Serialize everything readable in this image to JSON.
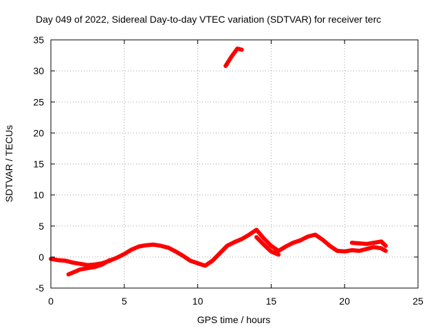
{
  "chart_data": {
    "type": "line",
    "title": "Day 049 of 2022, Sidereal Day-to-day VTEC variation (SDTVAR) for receiver terc",
    "xlabel": "GPS time / hours",
    "ylabel": "SDTVAR / TECUs",
    "xlim": [
      0,
      25
    ],
    "ylim": [
      -5,
      35
    ],
    "x_ticks": [
      "0",
      "5",
      "10",
      "15",
      "20",
      "25"
    ],
    "y_ticks": [
      "-5",
      "0",
      "5",
      "10",
      "15",
      "20",
      "25",
      "30",
      "35"
    ],
    "grid": true,
    "series": [
      {
        "name": "trace-main",
        "color": "#ff0000",
        "x": [
          0.0,
          0.5,
          1.0,
          1.5,
          2.0,
          2.5,
          3.0,
          3.5,
          4.0,
          4.5,
          5.0,
          5.5,
          6.0,
          6.5,
          7.0,
          7.5,
          8.0,
          8.5,
          9.0,
          9.5,
          10.0,
          10.5,
          11.0,
          11.5,
          12.0,
          12.5,
          13.0,
          13.5,
          14.0,
          14.5,
          15.0,
          15.5,
          16.0,
          16.5,
          17.0,
          17.5,
          18.0,
          18.5,
          19.0,
          19.5,
          20.0,
          20.5,
          21.0,
          21.5,
          22.0,
          22.5,
          22.8
        ],
        "y": [
          -0.3,
          -0.5,
          -0.6,
          -0.9,
          -1.1,
          -1.3,
          -1.2,
          -1.0,
          -0.6,
          -0.1,
          0.5,
          1.2,
          1.7,
          1.9,
          2.0,
          1.8,
          1.5,
          0.9,
          0.2,
          -0.6,
          -1.0,
          -1.4,
          -0.6,
          0.6,
          1.8,
          2.4,
          2.9,
          3.6,
          4.4,
          3.0,
          1.8,
          1.0,
          1.7,
          2.3,
          2.7,
          3.3,
          3.6,
          2.8,
          1.8,
          1.0,
          0.9,
          1.1,
          1.0,
          1.3,
          1.6,
          1.4,
          1.0
        ]
      },
      {
        "name": "trace-lower-branch",
        "color": "#ff0000",
        "x": [
          1.2,
          1.6,
          2.0,
          2.5,
          3.0,
          3.5,
          4.0
        ],
        "y": [
          -2.8,
          -2.4,
          -2.0,
          -1.8,
          -1.6,
          -1.2,
          -0.5
        ]
      },
      {
        "name": "trace-evening-branch",
        "color": "#ff0000",
        "x": [
          14.0,
          14.5,
          15.0,
          15.5
        ],
        "y": [
          3.2,
          2.0,
          0.9,
          0.4
        ]
      },
      {
        "name": "trace-late-branch",
        "color": "#ff0000",
        "x": [
          20.5,
          21.0,
          21.5,
          22.0,
          22.5,
          22.8
        ],
        "y": [
          2.3,
          2.2,
          2.1,
          2.3,
          2.5,
          1.8
        ]
      },
      {
        "name": "trace-upper-segment",
        "color": "#ff0000",
        "x": [
          11.9,
          12.3,
          12.7,
          13.0
        ],
        "y": [
          30.8,
          32.3,
          33.6,
          33.4
        ]
      }
    ]
  }
}
